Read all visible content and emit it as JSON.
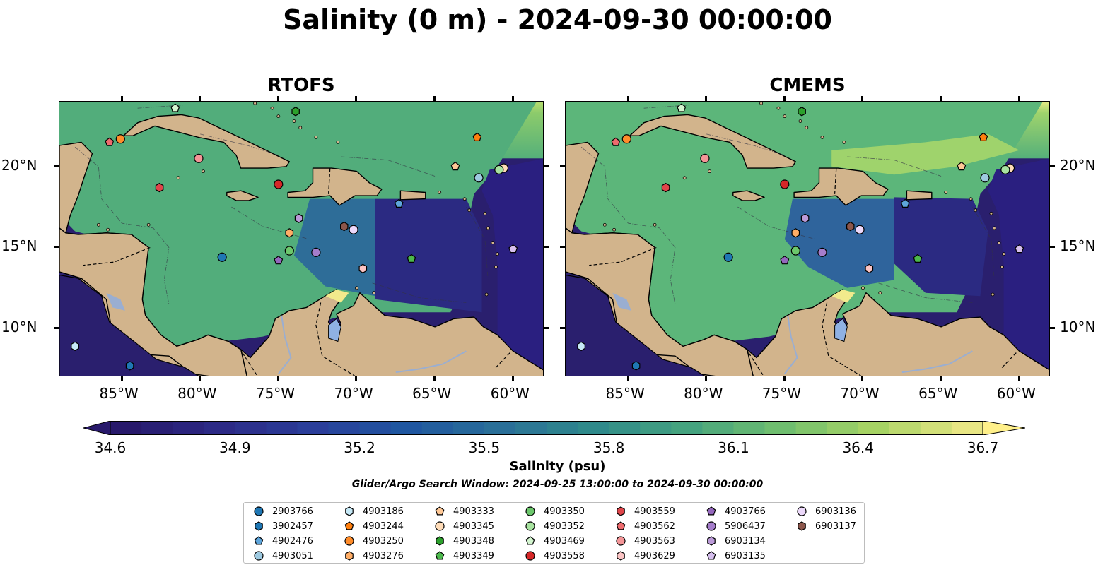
{
  "title": "Salinity (0 m) - 2024-09-30 00:00:00",
  "panels": [
    {
      "title": "RTOFS"
    },
    {
      "title": "CMEMS"
    }
  ],
  "axes": {
    "lon_labels": [
      "85°W",
      "80°W",
      "75°W",
      "70°W",
      "65°W",
      "60°W"
    ],
    "lon_values": [
      -85,
      -80,
      -75,
      -70,
      -65,
      -60
    ],
    "lat_labels": [
      "20°N",
      "15°N",
      "10°N"
    ],
    "lat_values": [
      20,
      15,
      10
    ],
    "lon_range": [
      -89,
      -58
    ],
    "lat_range": [
      7,
      24
    ]
  },
  "colorbar": {
    "label": "Salinity (psu)",
    "tick_labels": [
      "34.6",
      "34.9",
      "35.2",
      "35.5",
      "35.8",
      "36.1",
      "36.4",
      "36.7"
    ],
    "range": [
      34.6,
      36.7
    ],
    "colors": [
      "#28196b",
      "#2c2a86",
      "#2b3e9a",
      "#1f56a0",
      "#2a6f98",
      "#2f8a8b",
      "#45a37f",
      "#6fbe6f",
      "#a6d364",
      "#e8e684",
      "#fff08a"
    ]
  },
  "colorbar_title": "Salinity (psu)",
  "search_window": "Glider/Argo Search Window: 2024-09-25 13:00:00 to 2024-09-30 00:00:00",
  "legend": [
    {
      "id": "2903766",
      "shape": "circle",
      "color": "#1f77b4"
    },
    {
      "id": "3902457",
      "shape": "hexagon",
      "color": "#1f77b4"
    },
    {
      "id": "4902476",
      "shape": "pentagon",
      "color": "#5ea5db"
    },
    {
      "id": "4903051",
      "shape": "circle",
      "color": "#9ecae1"
    },
    {
      "id": "4903186",
      "shape": "hexagon",
      "color": "#c6e9f7"
    },
    {
      "id": "4903244",
      "shape": "pentagon",
      "color": "#ff7f0e"
    },
    {
      "id": "4903250",
      "shape": "circle",
      "color": "#ff8c2a"
    },
    {
      "id": "4903276",
      "shape": "hexagon",
      "color": "#ffad66"
    },
    {
      "id": "4903333",
      "shape": "pentagon",
      "color": "#ffc896"
    },
    {
      "id": "4903345",
      "shape": "circle",
      "color": "#ffdcb8"
    },
    {
      "id": "4903348",
      "shape": "hexagon",
      "color": "#2ca02c"
    },
    {
      "id": "4903349",
      "shape": "pentagon",
      "color": "#4cb84c"
    },
    {
      "id": "4903350",
      "shape": "circle",
      "color": "#6cc76c"
    },
    {
      "id": "4903352",
      "shape": "circle",
      "color": "#a8e3a0"
    },
    {
      "id": "4903469",
      "shape": "pentagon",
      "color": "#d3f5cf"
    },
    {
      "id": "4903558",
      "shape": "circle",
      "color": "#d62728"
    },
    {
      "id": "4903559",
      "shape": "hexagon",
      "color": "#e0454a"
    },
    {
      "id": "4903562",
      "shape": "pentagon",
      "color": "#ee6b6e"
    },
    {
      "id": "4903563",
      "shape": "circle",
      "color": "#f49597"
    },
    {
      "id": "4903629",
      "shape": "hexagon",
      "color": "#fbc4c4"
    },
    {
      "id": "4903766",
      "shape": "pentagon",
      "color": "#9467bd"
    },
    {
      "id": "5906437",
      "shape": "circle",
      "color": "#a57dcb"
    },
    {
      "id": "6903134",
      "shape": "hexagon",
      "color": "#bb9ad8"
    },
    {
      "id": "6903135",
      "shape": "pentagon",
      "color": "#d6bfee"
    },
    {
      "id": "6903136",
      "shape": "circle",
      "color": "#ecd8fa"
    },
    {
      "id": "6903137",
      "shape": "hexagon",
      "color": "#8c564b"
    }
  ],
  "markers": [
    {
      "id": "2903766",
      "lon": -78.6,
      "lat": 14.4
    },
    {
      "id": "3902457",
      "lon": -84.5,
      "lat": 7.7
    },
    {
      "id": "4902476",
      "lon": -67.3,
      "lat": 17.7
    },
    {
      "id": "4903051",
      "lon": -62.2,
      "lat": 19.3
    },
    {
      "id": "4903186",
      "lon": -88.0,
      "lat": 8.9
    },
    {
      "id": "4903244",
      "lon": -62.3,
      "lat": 21.8
    },
    {
      "id": "4903250",
      "lon": -85.1,
      "lat": 21.7
    },
    {
      "id": "4903276",
      "lon": -74.3,
      "lat": 15.9
    },
    {
      "id": "4903333",
      "lon": -63.7,
      "lat": 20.0
    },
    {
      "id": "4903345",
      "lon": -60.6,
      "lat": 19.9
    },
    {
      "id": "4903348",
      "lon": -73.9,
      "lat": 23.4
    },
    {
      "id": "4903349",
      "lon": -66.5,
      "lat": 14.3
    },
    {
      "id": "4903350",
      "lon": -74.3,
      "lat": 14.8
    },
    {
      "id": "4903352",
      "lon": -60.9,
      "lat": 19.8
    },
    {
      "id": "4903469",
      "lon": -81.6,
      "lat": 23.6
    },
    {
      "id": "4903558",
      "lon": -75.0,
      "lat": 18.9
    },
    {
      "id": "4903559",
      "lon": -82.6,
      "lat": 18.7
    },
    {
      "id": "4903562",
      "lon": -85.8,
      "lat": 21.5
    },
    {
      "id": "4903563",
      "lon": -80.1,
      "lat": 20.5
    },
    {
      "id": "4903629",
      "lon": -69.6,
      "lat": 13.7
    },
    {
      "id": "4903766",
      "lon": -75.0,
      "lat": 14.2
    },
    {
      "id": "5906437",
      "lon": -72.6,
      "lat": 14.7
    },
    {
      "id": "6903134",
      "lon": -73.7,
      "lat": 16.8
    },
    {
      "id": "6903135",
      "lon": -60.0,
      "lat": 14.9
    },
    {
      "id": "6903136",
      "lon": -70.2,
      "lat": 16.1
    },
    {
      "id": "6903137",
      "lon": -70.8,
      "lat": 16.3
    }
  ]
}
